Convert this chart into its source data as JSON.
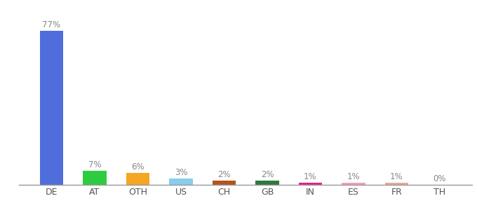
{
  "categories": [
    "DE",
    "AT",
    "OTH",
    "US",
    "CH",
    "GB",
    "IN",
    "ES",
    "FR",
    "TH"
  ],
  "values": [
    77,
    7,
    6,
    3,
    2,
    2,
    1,
    1,
    1,
    0
  ],
  "labels": [
    "77%",
    "7%",
    "6%",
    "3%",
    "2%",
    "2%",
    "1%",
    "1%",
    "1%",
    "0%"
  ],
  "colors": [
    "#4f6edb",
    "#2ecc40",
    "#f5a623",
    "#87ceeb",
    "#b5541a",
    "#2d7a3a",
    "#e91e8c",
    "#f4a0b5",
    "#e8a898",
    "#e0e0e0"
  ],
  "ylim": [
    0,
    85
  ],
  "background_color": "#ffffff",
  "label_fontsize": 8.5,
  "tick_fontsize": 9,
  "label_color": "#888888"
}
